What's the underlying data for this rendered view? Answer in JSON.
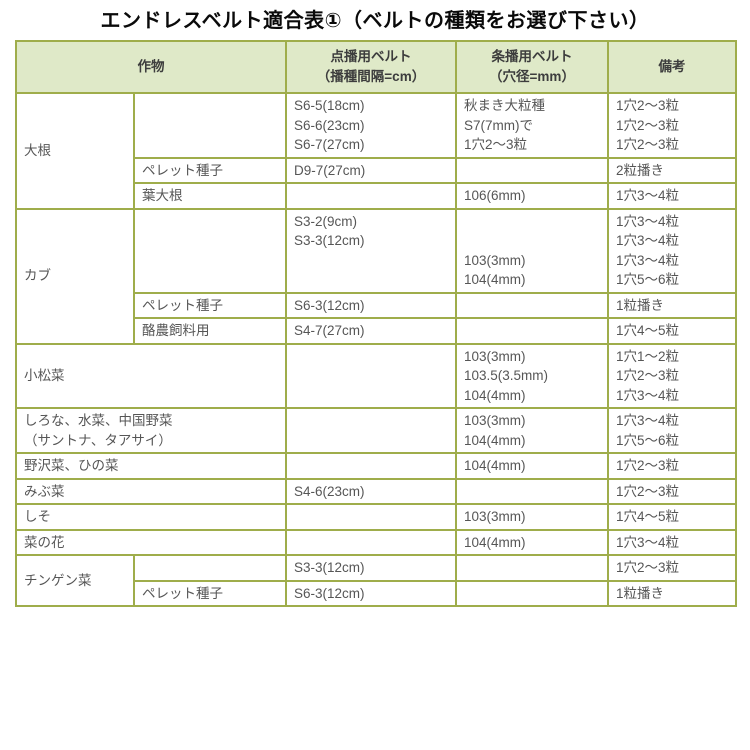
{
  "page": {
    "title": "エンドレスベルト適合表①（ベルトの種類をお選び下さい）"
  },
  "colors": {
    "table_border": "#9fad4b",
    "header_background": "#dfe9c8",
    "header_text": "#3d3d3d",
    "body_text": "#565656",
    "title_text": "#0a0a0a",
    "page_background": "#ffffff"
  },
  "table": {
    "headers": {
      "crop": "作物",
      "dot_belt": "点播用ベルト\n（播種間隔=cm）",
      "row_belt": "条播用ベルト\n（穴径=mm）",
      "remarks": "備考"
    },
    "sections": [
      {
        "crop": "大根",
        "rows": [
          {
            "sub": "",
            "dot": "S6-5(18cm)\nS6-6(23cm)\nS6-7(27cm)",
            "row": "秋まき大粒種\nS7(7mm)で\n1穴2～3粒",
            "remarks": "1穴2～3粒\n1穴2～3粒\n1穴2～3粒"
          },
          {
            "sub": "ペレット種子",
            "dot": "D9-7(27cm)",
            "row": "",
            "remarks": "2粒播き"
          },
          {
            "sub": "葉大根",
            "dot": "",
            "row": "106(6mm)",
            "remarks": "1穴3～4粒"
          }
        ]
      },
      {
        "crop": "カブ",
        "rows": [
          {
            "sub": "",
            "dot": "S3-2(9cm)\nS3-3(12cm)",
            "row": "103(3mm)\n104(4mm)",
            "remarks": "1穴3～4粒\n1穴3～4粒\n1穴3～4粒\n1穴5～6粒"
          },
          {
            "sub": "ペレット種子",
            "dot": "S6-3(12cm)",
            "row": "",
            "remarks": "1粒播き"
          },
          {
            "sub": "酪農飼料用",
            "dot": "S4-7(27cm)",
            "row": "",
            "remarks": "1穴4～5粒"
          }
        ]
      },
      {
        "crop": "小松菜",
        "dot": "",
        "row": "103(3mm)\n103.5(3.5mm)\n104(4mm)",
        "remarks": "1穴1～2粒\n1穴2～3粒\n1穴3～4粒"
      },
      {
        "crop": "しろな、水菜、中国野菜\n（サントナ、タアサイ）",
        "dot": "",
        "row": "103(3mm)\n104(4mm)",
        "remarks": "1穴3～4粒\n1穴5～6粒"
      },
      {
        "crop": "野沢菜、ひの菜",
        "dot": "",
        "row": "104(4mm)",
        "remarks": "1穴2～3粒"
      },
      {
        "crop": "みぶ菜",
        "dot": "S4-6(23cm)",
        "row": "",
        "remarks": "1穴2～3粒"
      },
      {
        "crop": "しそ",
        "dot": "",
        "row": "103(3mm)",
        "remarks": "1穴4～5粒"
      },
      {
        "crop": "菜の花",
        "dot": "",
        "row": "104(4mm)",
        "remarks": "1穴3～4粒"
      },
      {
        "crop": "チンゲン菜",
        "rows": [
          {
            "sub": "",
            "dot": "S3-3(12cm)",
            "row": "",
            "remarks": "1穴2～3粒"
          },
          {
            "sub": "ペレット種子",
            "dot": "S6-3(12cm)",
            "row": "",
            "remarks": "1粒播き"
          }
        ]
      }
    ]
  }
}
